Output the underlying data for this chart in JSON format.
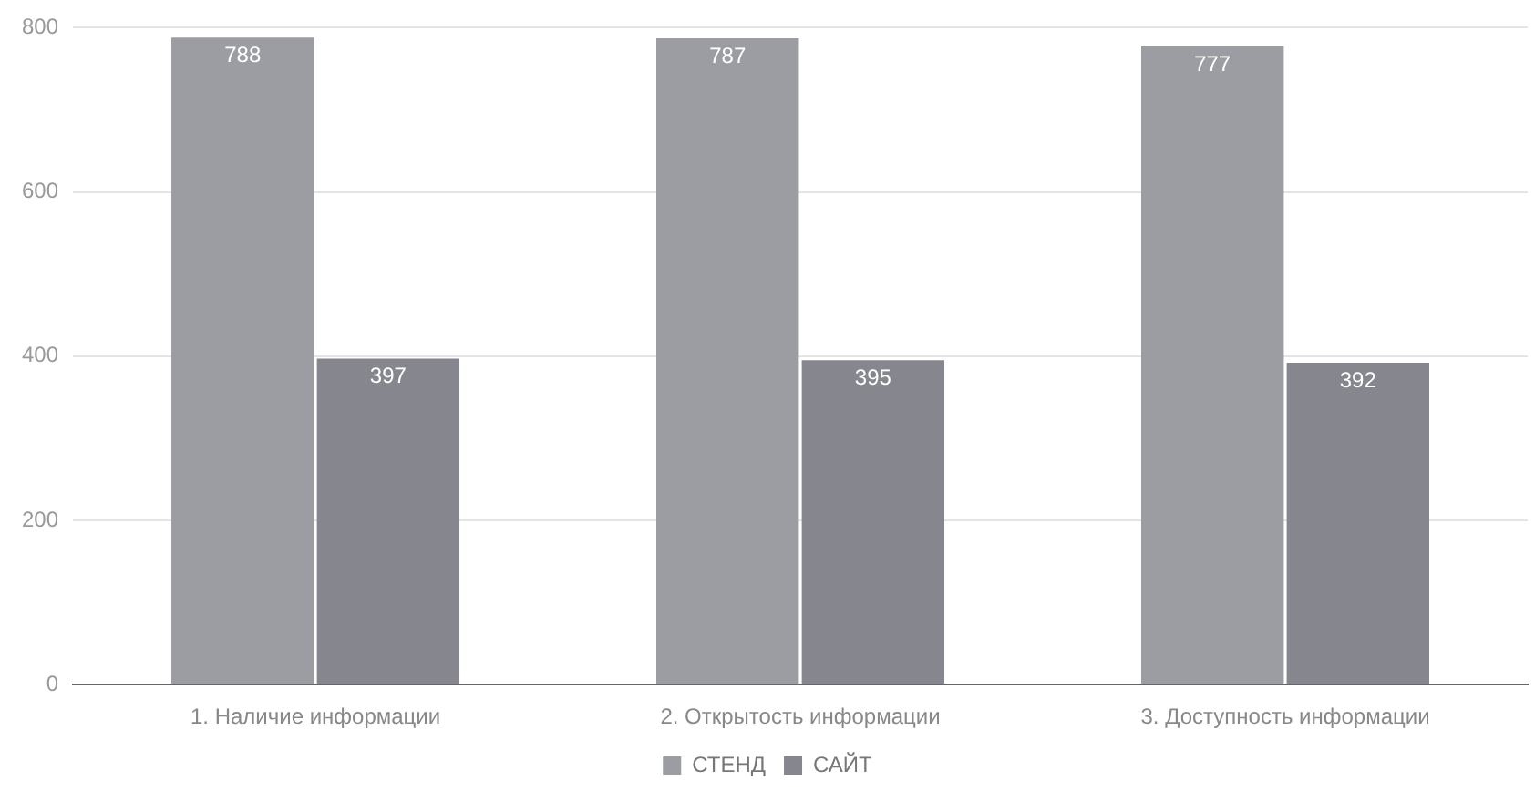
{
  "chart_data": {
    "type": "bar",
    "categories": [
      "1. Наличие информации",
      "2. Открытость информации",
      "3. Доступность информации"
    ],
    "series": [
      {
        "name": "СТЕНД",
        "color": "#9c9ca3",
        "values": [
          788,
          787,
          777
        ]
      },
      {
        "name": "САЙТ",
        "color": "#86868e",
        "values": [
          397,
          395,
          392
        ]
      }
    ],
    "ylim": [
      0,
      800
    ],
    "yticks": [
      0,
      200,
      400,
      600,
      800
    ],
    "grid": "y",
    "legend": "bottom",
    "data_labels": true
  }
}
